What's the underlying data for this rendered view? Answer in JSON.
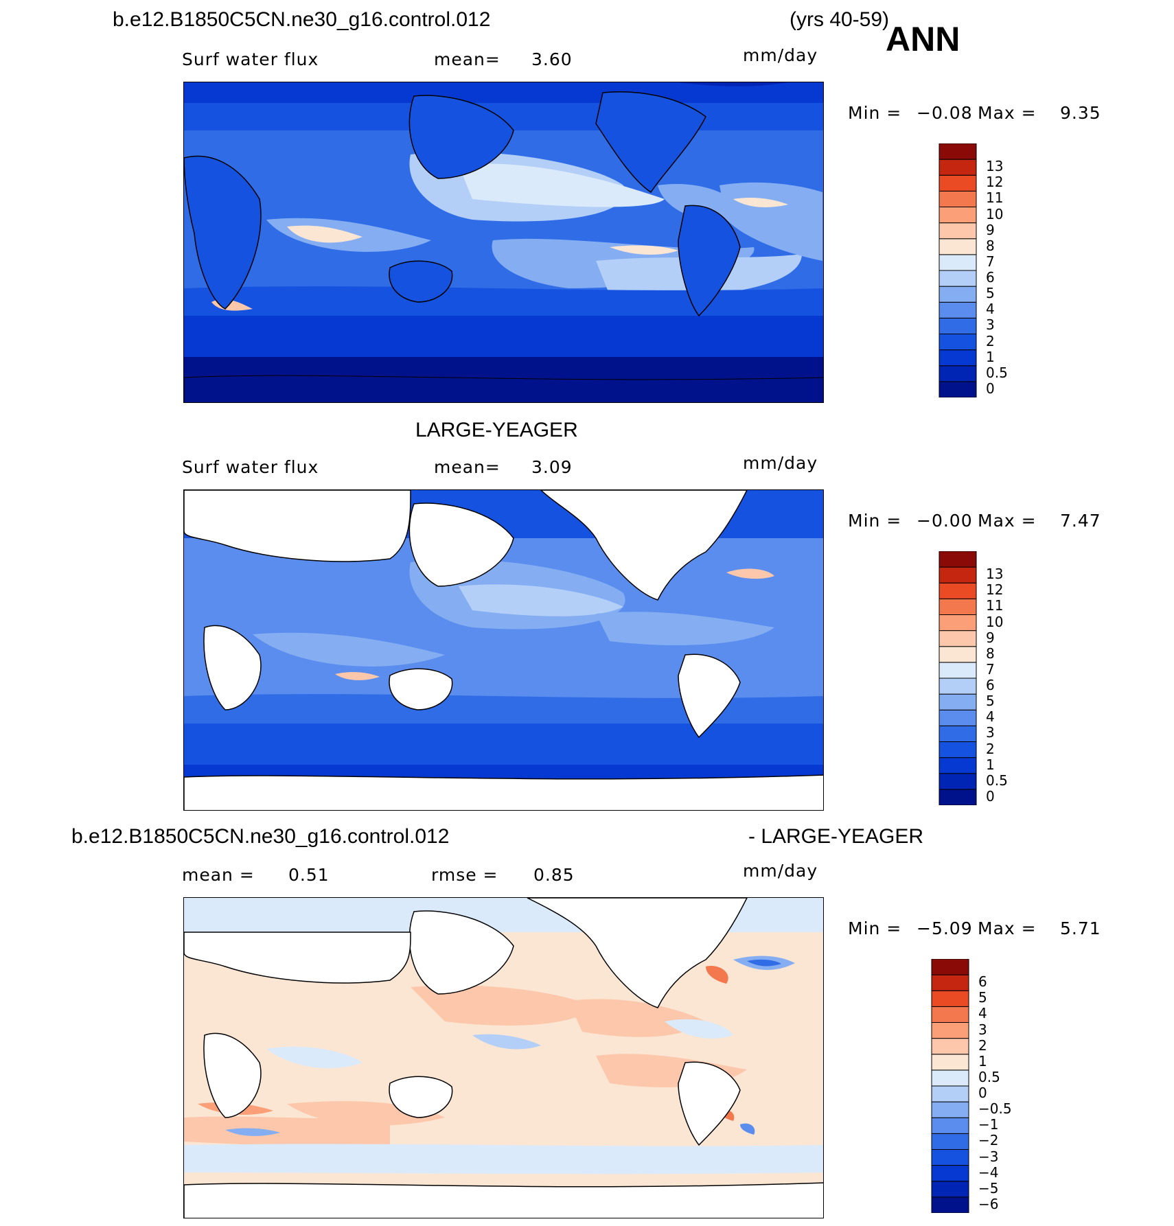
{
  "header": {
    "case_name": "b.e12.B1850C5CN.ne30_g16.control.012",
    "years": "(yrs 40-59)",
    "season": "ANN"
  },
  "panels": [
    {
      "id": "model",
      "title": "",
      "variable": "Surf water flux",
      "mean_label": "mean=",
      "mean_value": "3.60",
      "units": "mm/day",
      "min_label": "Min =",
      "min_value": "−0.08",
      "max_label": "Max =",
      "max_value": "9.35"
    },
    {
      "id": "obs",
      "title": "LARGE-YEAGER",
      "variable": "Surf water flux",
      "mean_label": "mean=",
      "mean_value": "3.09",
      "units": "mm/day",
      "min_label": "Min =",
      "min_value": "−0.00",
      "max_label": "Max =",
      "max_value": "7.47"
    },
    {
      "id": "diff",
      "title_left": "b.e12.B1850C5CN.ne30_g16.control.012",
      "title_right": "- LARGE-YEAGER",
      "mean_label": "mean =",
      "mean_value": "0.51",
      "rmse_label": "rmse =",
      "rmse_value": "0.85",
      "units": "mm/day",
      "min_label": "Min =",
      "min_value": "−5.09",
      "max_label": "Max =",
      "max_value": "5.71"
    }
  ],
  "chart_data": [
    {
      "type": "heatmap",
      "title": "Surf water flux",
      "units": "mm/day",
      "levels": [
        "0",
        "0.5",
        "1",
        "2",
        "3",
        "4",
        "5",
        "6",
        "7",
        "8",
        "9",
        "10",
        "11",
        "12",
        "13"
      ],
      "colors": [
        "#00118c",
        "#0024b3",
        "#0638d2",
        "#1652e0",
        "#2f6ce6",
        "#5a8ded",
        "#85aef2",
        "#b3cff7",
        "#daeafa",
        "#fbe6d4",
        "#fcc7aa",
        "#fa9f78",
        "#f3784e",
        "#ea4b25",
        "#c4260f",
        "#8a0a08"
      ],
      "mean": 3.6,
      "min": -0.08,
      "max": 9.35
    },
    {
      "type": "heatmap",
      "title": "LARGE-YEAGER",
      "units": "mm/day",
      "levels": [
        "0",
        "0.5",
        "1",
        "2",
        "3",
        "4",
        "5",
        "6",
        "7",
        "8",
        "9",
        "10",
        "11",
        "12",
        "13"
      ],
      "colors": [
        "#00118c",
        "#0024b3",
        "#0638d2",
        "#1652e0",
        "#2f6ce6",
        "#5a8ded",
        "#85aef2",
        "#b3cff7",
        "#daeafa",
        "#fbe6d4",
        "#fcc7aa",
        "#fa9f78",
        "#f3784e",
        "#ea4b25",
        "#c4260f",
        "#8a0a08"
      ],
      "mean": 3.09,
      "min": -0.0,
      "max": 7.47
    },
    {
      "type": "heatmap",
      "title": "b.e12.B1850C5CN.ne30_g16.control.012 - LARGE-YEAGER",
      "units": "mm/day",
      "levels": [
        "−6",
        "−5",
        "−4",
        "−3",
        "−2",
        "−1",
        "−0.5",
        "0",
        "0.5",
        "1",
        "2",
        "3",
        "4",
        "5",
        "6"
      ],
      "colors": [
        "#00118c",
        "#0024b3",
        "#0638d2",
        "#1652e0",
        "#2f6ce6",
        "#5a8ded",
        "#85aef2",
        "#b3cff7",
        "#daeafa",
        "#fbe6d4",
        "#fcc7aa",
        "#fa9f78",
        "#f3784e",
        "#ea4b25",
        "#c4260f",
        "#8a0a08"
      ],
      "mean": 0.51,
      "rmse": 0.85,
      "min": -5.09,
      "max": 5.71
    }
  ]
}
